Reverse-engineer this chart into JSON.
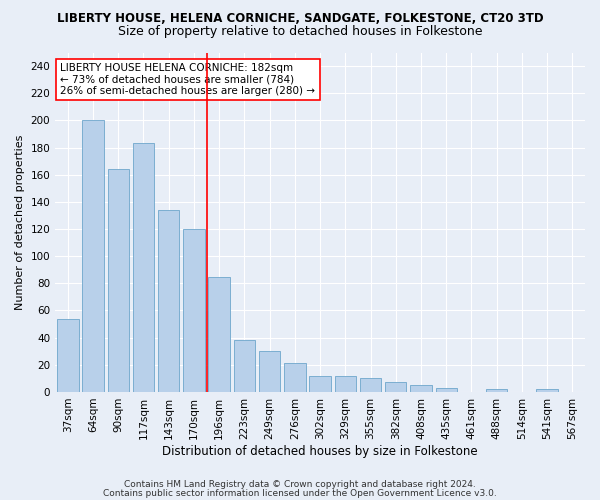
{
  "title1": "LIBERTY HOUSE, HELENA CORNICHE, SANDGATE, FOLKESTONE, CT20 3TD",
  "title2": "Size of property relative to detached houses in Folkestone",
  "xlabel": "Distribution of detached houses by size in Folkestone",
  "ylabel": "Number of detached properties",
  "categories": [
    "37sqm",
    "64sqm",
    "90sqm",
    "117sqm",
    "143sqm",
    "170sqm",
    "196sqm",
    "223sqm",
    "249sqm",
    "276sqm",
    "302sqm",
    "329sqm",
    "355sqm",
    "382sqm",
    "408sqm",
    "435sqm",
    "461sqm",
    "488sqm",
    "514sqm",
    "541sqm",
    "567sqm"
  ],
  "values": [
    54,
    200,
    164,
    183,
    134,
    120,
    85,
    38,
    30,
    21,
    12,
    12,
    10,
    7,
    5,
    3,
    0,
    2,
    0,
    2,
    0
  ],
  "bar_color": "#b8d0ea",
  "bar_edge_color": "#6ea6cc",
  "vline_x": 5.5,
  "vline_color": "red",
  "annotation_text": "LIBERTY HOUSE HELENA CORNICHE: 182sqm\n← 73% of detached houses are smaller (784)\n26% of semi-detached houses are larger (280) →",
  "annotation_box_color": "white",
  "annotation_box_edge_color": "red",
  "ylim": [
    0,
    250
  ],
  "yticks": [
    0,
    20,
    40,
    60,
    80,
    100,
    120,
    140,
    160,
    180,
    200,
    220,
    240
  ],
  "footer1": "Contains HM Land Registry data © Crown copyright and database right 2024.",
  "footer2": "Contains public sector information licensed under the Open Government Licence v3.0.",
  "background_color": "#e8eef7",
  "grid_color": "#ffffff",
  "title1_fontsize": 8.5,
  "title2_fontsize": 9,
  "xlabel_fontsize": 8.5,
  "ylabel_fontsize": 8,
  "tick_fontsize": 7.5,
  "annotation_fontsize": 7.5,
  "footer_fontsize": 6.5
}
